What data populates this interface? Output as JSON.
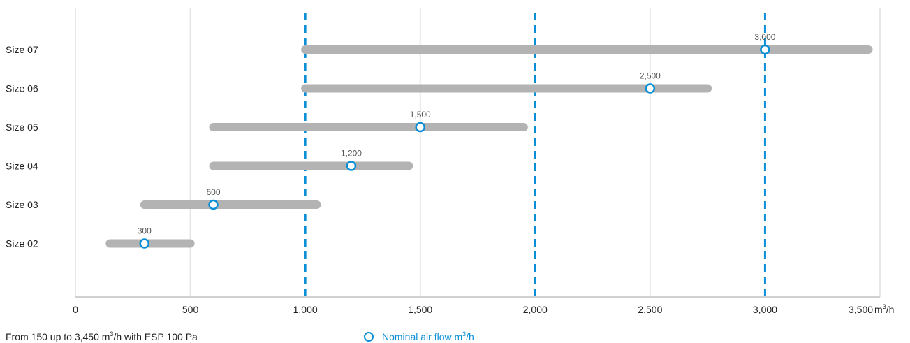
{
  "chart_data": {
    "type": "range-bar",
    "categories": [
      "Size 07",
      "Size 06",
      "Size 05",
      "Size 04",
      "Size 03",
      "Size 02"
    ],
    "ranges": [
      {
        "category": "Size 07",
        "min": 1000,
        "max": 3450,
        "nominal": 3000,
        "nominal_label": "3,000"
      },
      {
        "category": "Size 06",
        "min": 1000,
        "max": 2750,
        "nominal": 2500,
        "nominal_label": "2,500"
      },
      {
        "category": "Size 05",
        "min": 600,
        "max": 1950,
        "nominal": 1500,
        "nominal_label": "1,500"
      },
      {
        "category": "Size 04",
        "min": 600,
        "max": 1450,
        "nominal": 1200,
        "nominal_label": "1,200"
      },
      {
        "category": "Size 03",
        "min": 300,
        "max": 1050,
        "nominal": 600,
        "nominal_label": "600"
      },
      {
        "category": "Size 02",
        "min": 150,
        "max": 500,
        "nominal": 300,
        "nominal_label": "300"
      }
    ],
    "xlim": [
      0,
      3500
    ],
    "x_ticks": [
      0,
      500,
      1000,
      1500,
      2000,
      2500,
      3000,
      3500
    ],
    "x_tick_labels": [
      "0",
      "500",
      "1,000",
      "1,500",
      "2,000",
      "2,500",
      "3,000",
      "3,500"
    ],
    "x_unit": "m",
    "x_unit_sup": "3",
    "x_unit_suffix": "/h",
    "dashed_reference_lines": [
      1000,
      2000,
      3000
    ],
    "grid": "vertical",
    "legend": {
      "label": "Nominal air flow m",
      "sup": "3",
      "suffix": "/h",
      "placement": "bottom"
    },
    "note": {
      "prefix": "From 150 up to 3,450 m",
      "sup": "3",
      "suffix": "/h with ESP 100 Pa"
    },
    "colors": {
      "range_bar": "#b3b3b3",
      "accent": "#0a8fd6",
      "grid": "#e6e6e6",
      "text": "#222222"
    }
  }
}
